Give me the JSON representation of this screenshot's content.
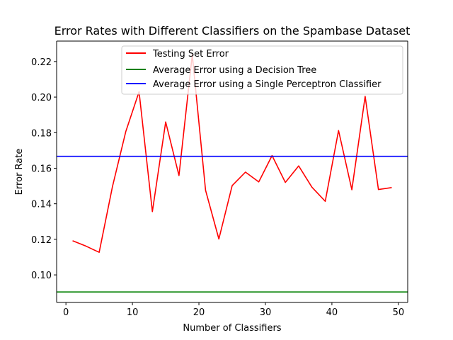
{
  "chart_data": {
    "type": "line",
    "title": "Error Rates with Different Classifiers on the Spambase Dataset",
    "xlabel": "Number of Classifiers",
    "ylabel": "Error Rate",
    "xlim": [
      -1.4,
      51.4
    ],
    "ylim": [
      0.0845,
      0.2315
    ],
    "xticks": [
      0,
      10,
      20,
      30,
      40,
      50
    ],
    "yticks": [
      0.1,
      0.12,
      0.14,
      0.16,
      0.18,
      0.2,
      0.22
    ],
    "xtick_labels": [
      "0",
      "10",
      "20",
      "30",
      "40",
      "50"
    ],
    "ytick_labels": [
      "0.10",
      "0.12",
      "0.14",
      "0.16",
      "0.18",
      "0.20",
      "0.22"
    ],
    "grid": false,
    "legend_position": "upper right",
    "series": [
      {
        "name": "Testing Set Error",
        "kind": "line",
        "color": "#ff0000",
        "x": [
          1,
          3,
          5,
          7,
          9,
          11,
          13,
          15,
          17,
          19,
          21,
          23,
          25,
          27,
          29,
          31,
          33,
          35,
          37,
          39,
          41,
          43,
          45,
          47,
          49
        ],
        "y": [
          0.1192,
          0.1162,
          0.1127,
          0.1497,
          0.1806,
          0.203,
          0.1356,
          0.186,
          0.1559,
          0.2238,
          0.1476,
          0.1202,
          0.1502,
          0.1578,
          0.1523,
          0.1671,
          0.152,
          0.1613,
          0.1493,
          0.1414,
          0.1812,
          0.1479,
          0.2004,
          0.148,
          0.1491
        ]
      },
      {
        "name": "Average Error using a Decision Tree",
        "kind": "hline",
        "color": "#008000",
        "y": 0.0904
      },
      {
        "name": "Average Error using a Single Perceptron Classifier",
        "kind": "hline",
        "color": "#0000ff",
        "y": 0.1667
      }
    ]
  }
}
